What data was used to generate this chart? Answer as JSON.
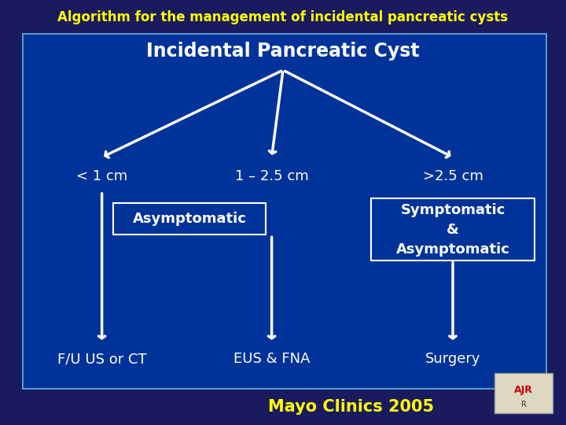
{
  "title": "Algorithm for the management of incidental pancreatic cysts",
  "title_color": "#FFFF00",
  "bg_outer": "#1a1a5e",
  "bg_inner": "#003399",
  "border_color": "#5599cc",
  "text_color": "#ffffff",
  "main_node": "Incidental Pancreatic Cyst",
  "branches": [
    "< 1 cm",
    "1 – 2.5 cm",
    ">2.5 cm"
  ],
  "middle_box_label": "Asymptomatic",
  "right_box_label": "Symptomatic\n&\nAsymptomatic",
  "bottom_labels": [
    "F/U US or CT",
    "EUS & FNA",
    "Surgery"
  ],
  "footer": "Mayo Clinics 2005",
  "footer_color": "#FFFF00",
  "arrow_color": "#ffffff",
  "box_edge_color": "#ffffff"
}
